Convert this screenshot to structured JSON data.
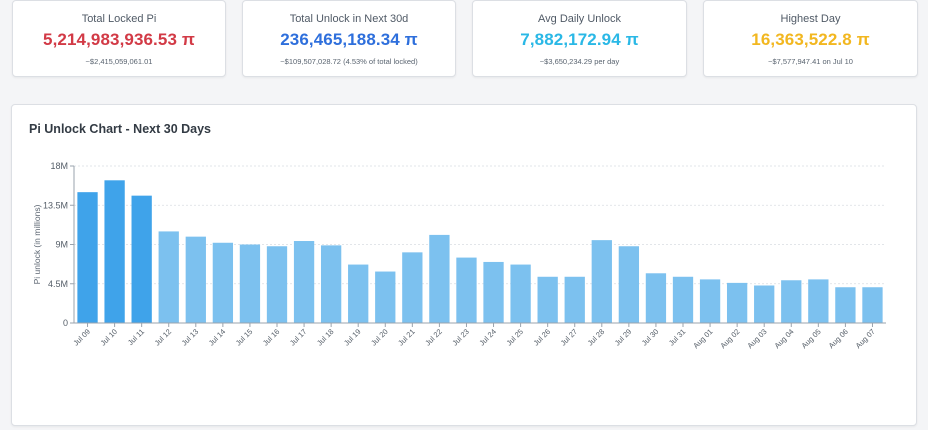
{
  "cards": [
    {
      "label": "Total Locked Pi",
      "value": "5,214,983,936.53 π",
      "sub": "~$2,415,059,061.01",
      "color": "#d23a46"
    },
    {
      "label": "Total Unlock in Next 30d",
      "value": "236,465,188.34 π",
      "sub": "~$109,507,028.72 (4.53% of total locked)",
      "color": "#2e6fdc"
    },
    {
      "label": "Avg Daily Unlock",
      "value": "7,882,172.94 π",
      "sub": "~$3,650,234.29 per day",
      "color": "#2ab8e6"
    },
    {
      "label": "Highest Day",
      "value": "16,363,522.8 π",
      "sub": "~$7,577,947.41 on Jul 10",
      "color": "#f2b720"
    }
  ],
  "panel": {
    "title": "Pi Unlock Chart - Next 30 Days"
  },
  "chart_data": {
    "type": "bar",
    "title": "Pi Unlock Chart - Next 30 Days",
    "ylabel": "Pi unlock (in millions)",
    "xlabel": "",
    "ylim": [
      0,
      18
    ],
    "yticks": [
      {
        "v": 0,
        "label": "0"
      },
      {
        "v": 4.5,
        "label": "4.5M"
      },
      {
        "v": 9,
        "label": "9M"
      },
      {
        "v": 13.5,
        "label": "13.5M"
      },
      {
        "v": 18,
        "label": "18M"
      }
    ],
    "grid": true,
    "categories": [
      "Jul 09",
      "Jul 10",
      "Jul 11",
      "Jul 12",
      "Jul 13",
      "Jul 14",
      "Jul 15",
      "Jul 16",
      "Jul 17",
      "Jul 18",
      "Jul 19",
      "Jul 20",
      "Jul 21",
      "Jul 22",
      "Jul 23",
      "Jul 24",
      "Jul 25",
      "Jul 26",
      "Jul 27",
      "Jul 28",
      "Jul 29",
      "Jul 30",
      "Jul 31",
      "Aug 01",
      "Aug 02",
      "Aug 03",
      "Aug 04",
      "Aug 05",
      "Aug 06",
      "Aug 07"
    ],
    "values": [
      15.0,
      16.36,
      14.6,
      10.5,
      9.9,
      9.2,
      9.0,
      8.8,
      9.4,
      8.9,
      6.7,
      5.9,
      8.1,
      10.1,
      7.5,
      7.0,
      6.7,
      5.3,
      5.3,
      9.5,
      8.8,
      5.7,
      5.3,
      5.0,
      4.6,
      4.3,
      4.9,
      5.0,
      4.1,
      4.1
    ],
    "highlight": [
      0,
      1,
      2
    ],
    "colors": {
      "highlight": "#3fa3ea",
      "normal": "#7cc1ef"
    }
  }
}
